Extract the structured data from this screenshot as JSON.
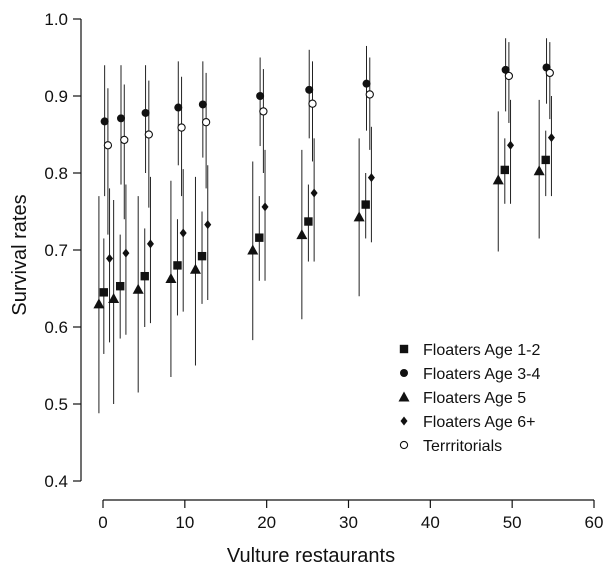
{
  "chart_data": {
    "type": "scatter",
    "xlabel": "Vulture restaurants",
    "ylabel": "Survival rates",
    "xlim": [
      0,
      60
    ],
    "ylim": [
      0.4,
      1.0
    ],
    "xticks": [
      0,
      10,
      20,
      30,
      40,
      50,
      60
    ],
    "yticks": [
      0.4,
      0.5,
      0.6,
      0.7,
      0.8,
      0.9,
      1.0
    ],
    "ytick_labels": [
      "0.4",
      "0.5",
      "0.6",
      "0.7",
      "0.8",
      "0.9",
      "1.0"
    ],
    "grid": false,
    "legend_position": "bottom-right",
    "series": [
      {
        "name": "Floaters Age 1-2",
        "marker": "square",
        "points": [
          {
            "x": 0.1,
            "y": 0.645,
            "lo": 0.565,
            "hi": 0.715
          },
          {
            "x": 2.1,
            "y": 0.653,
            "lo": 0.585,
            "hi": 0.72
          },
          {
            "x": 5.1,
            "y": 0.666,
            "lo": 0.6,
            "hi": 0.728
          },
          {
            "x": 9.1,
            "y": 0.68,
            "lo": 0.615,
            "hi": 0.74
          },
          {
            "x": 12.1,
            "y": 0.692,
            "lo": 0.63,
            "hi": 0.75
          },
          {
            "x": 19.1,
            "y": 0.716,
            "lo": 0.66,
            "hi": 0.77
          },
          {
            "x": 25.1,
            "y": 0.737,
            "lo": 0.685,
            "hi": 0.785
          },
          {
            "x": 32.1,
            "y": 0.759,
            "lo": 0.715,
            "hi": 0.8
          },
          {
            "x": 49.1,
            "y": 0.804,
            "lo": 0.76,
            "hi": 0.845
          },
          {
            "x": 54.1,
            "y": 0.817,
            "lo": 0.77,
            "hi": 0.855
          }
        ]
      },
      {
        "name": "Floaters Age 3-4",
        "marker": "circle-filled",
        "points": [
          {
            "x": 0.2,
            "y": 0.867,
            "lo": 0.77,
            "hi": 0.94
          },
          {
            "x": 2.2,
            "y": 0.871,
            "lo": 0.785,
            "hi": 0.94
          },
          {
            "x": 5.2,
            "y": 0.878,
            "lo": 0.8,
            "hi": 0.94
          },
          {
            "x": 9.2,
            "y": 0.885,
            "lo": 0.81,
            "hi": 0.945
          },
          {
            "x": 12.2,
            "y": 0.889,
            "lo": 0.82,
            "hi": 0.945
          },
          {
            "x": 19.2,
            "y": 0.9,
            "lo": 0.835,
            "hi": 0.95
          },
          {
            "x": 25.2,
            "y": 0.908,
            "lo": 0.845,
            "hi": 0.96
          },
          {
            "x": 32.2,
            "y": 0.916,
            "lo": 0.855,
            "hi": 0.965
          },
          {
            "x": 49.2,
            "y": 0.934,
            "lo": 0.88,
            "hi": 0.975
          },
          {
            "x": 54.2,
            "y": 0.937,
            "lo": 0.89,
            "hi": 0.975
          }
        ]
      },
      {
        "name": "Floaters Age 5",
        "marker": "triangle",
        "points": [
          {
            "x": -0.5,
            "y": 0.63,
            "lo": 0.488,
            "hi": 0.77
          },
          {
            "x": 1.3,
            "y": 0.637,
            "lo": 0.5,
            "hi": 0.765
          },
          {
            "x": 4.3,
            "y": 0.649,
            "lo": 0.515,
            "hi": 0.77
          },
          {
            "x": 8.3,
            "y": 0.663,
            "lo": 0.535,
            "hi": 0.79
          },
          {
            "x": 11.3,
            "y": 0.675,
            "lo": 0.55,
            "hi": 0.795
          },
          {
            "x": 18.3,
            "y": 0.7,
            "lo": 0.583,
            "hi": 0.815
          },
          {
            "x": 24.3,
            "y": 0.72,
            "lo": 0.61,
            "hi": 0.83
          },
          {
            "x": 31.3,
            "y": 0.743,
            "lo": 0.64,
            "hi": 0.845
          },
          {
            "x": 48.3,
            "y": 0.791,
            "lo": 0.698,
            "hi": 0.88
          },
          {
            "x": 53.3,
            "y": 0.803,
            "lo": 0.715,
            "hi": 0.895
          }
        ]
      },
      {
        "name": "Floaters Age 6+",
        "marker": "diamond",
        "points": [
          {
            "x": 0.8,
            "y": 0.689,
            "lo": 0.58,
            "hi": 0.78
          },
          {
            "x": 2.8,
            "y": 0.696,
            "lo": 0.59,
            "hi": 0.785
          },
          {
            "x": 5.8,
            "y": 0.708,
            "lo": 0.605,
            "hi": 0.795
          },
          {
            "x": 9.8,
            "y": 0.722,
            "lo": 0.62,
            "hi": 0.805
          },
          {
            "x": 12.8,
            "y": 0.733,
            "lo": 0.635,
            "hi": 0.81
          },
          {
            "x": 19.8,
            "y": 0.756,
            "lo": 0.66,
            "hi": 0.83
          },
          {
            "x": 25.8,
            "y": 0.774,
            "lo": 0.685,
            "hi": 0.845
          },
          {
            "x": 32.8,
            "y": 0.794,
            "lo": 0.71,
            "hi": 0.86
          },
          {
            "x": 49.8,
            "y": 0.836,
            "lo": 0.76,
            "hi": 0.895
          },
          {
            "x": 54.8,
            "y": 0.846,
            "lo": 0.77,
            "hi": 0.9
          }
        ]
      },
      {
        "name": "Terrritorials",
        "marker": "circle-open",
        "points": [
          {
            "x": 0.6,
            "y": 0.836,
            "lo": 0.72,
            "hi": 0.91
          },
          {
            "x": 2.6,
            "y": 0.843,
            "lo": 0.74,
            "hi": 0.915
          },
          {
            "x": 5.6,
            "y": 0.85,
            "lo": 0.755,
            "hi": 0.92
          },
          {
            "x": 9.6,
            "y": 0.859,
            "lo": 0.77,
            "hi": 0.925
          },
          {
            "x": 12.6,
            "y": 0.866,
            "lo": 0.78,
            "hi": 0.93
          },
          {
            "x": 19.6,
            "y": 0.88,
            "lo": 0.8,
            "hi": 0.935
          },
          {
            "x": 25.6,
            "y": 0.89,
            "lo": 0.815,
            "hi": 0.945
          },
          {
            "x": 32.6,
            "y": 0.902,
            "lo": 0.83,
            "hi": 0.95
          },
          {
            "x": 49.6,
            "y": 0.926,
            "lo": 0.865,
            "hi": 0.97
          },
          {
            "x": 54.6,
            "y": 0.93,
            "lo": 0.87,
            "hi": 0.97
          }
        ]
      }
    ]
  }
}
